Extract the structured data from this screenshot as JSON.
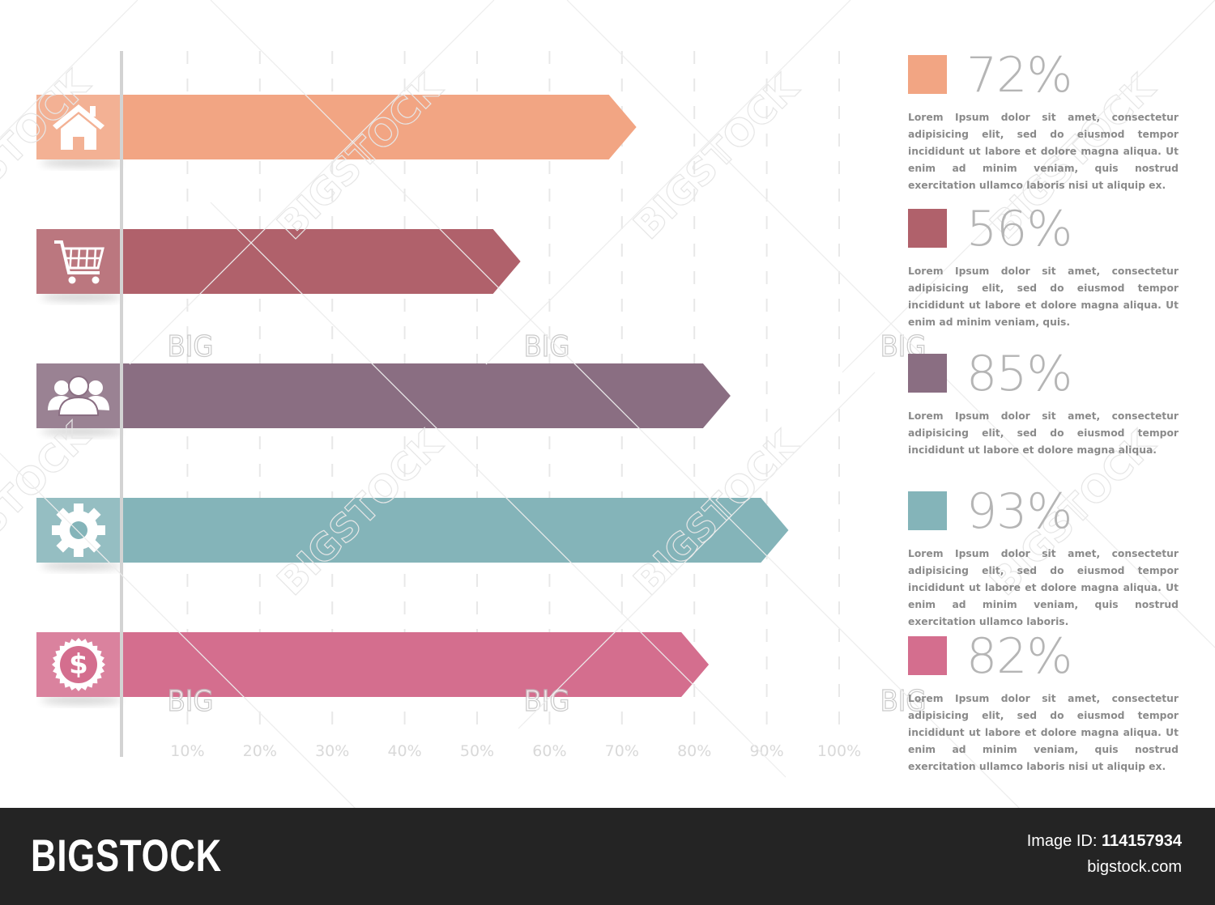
{
  "chart_data": {
    "type": "bar",
    "orientation": "horizontal",
    "title": "",
    "xlabel": "",
    "ylabel": "",
    "xlim": [
      0,
      100
    ],
    "x_ticks": [
      "10%",
      "20%",
      "30%",
      "40%",
      "50%",
      "60%",
      "70%",
      "80%",
      "90%",
      "100%"
    ],
    "grid": true,
    "legend_position": "right",
    "categories": [
      "home-icon",
      "cart-icon",
      "people-icon",
      "gear-icon",
      "dollar-icon"
    ],
    "values": [
      72,
      56,
      85,
      93,
      82
    ],
    "colors": [
      "#f2a583",
      "#b0616b",
      "#8a6e82",
      "#84b4b9",
      "#d46e8e"
    ],
    "legend": [
      {
        "label": "72%",
        "color": "#f2a583",
        "text": "Lorem Ipsum dolor sit amet, consectetur adipisicing elit, sed do eiusmod tempor incididunt ut labore et dolore magna aliqua. Ut enim ad minim veniam, quis nostrud exercitation ullamco laboris nisi ut aliquip ex."
      },
      {
        "label": "56%",
        "color": "#b0616b",
        "text": "Lorem Ipsum dolor sit amet, consectetur adipisicing elit, sed do eiusmod tempor incididunt ut labore et dolore magna aliqua. Ut enim ad minim veniam, quis."
      },
      {
        "label": "85%",
        "color": "#8a6e82",
        "text": "Lorem Ipsum dolor sit amet, consectetur adipisicing elit, sed do eiusmod tempor incididunt ut labore et dolore magna aliqua."
      },
      {
        "label": "93%",
        "color": "#84b4b9",
        "text": "Lorem Ipsum dolor sit amet, consectetur adipisicing elit, sed do eiusmod tempor incididunt ut labore et dolore magna aliqua. Ut enim ad minim veniam, quis nostrud exercitation ullamco laboris."
      },
      {
        "label": "82%",
        "color": "#d46e8e",
        "text": "Lorem Ipsum dolor sit amet, consectetur adipisicing elit, sed do eiusmod tempor incididunt ut labore et dolore magna aliqua. Ut enim ad minim veniam, quis nostrud exercitation ullamco laboris nisi ut aliquip ex."
      }
    ]
  },
  "watermark": {
    "main": "BIGSTOCK",
    "small": "BIG"
  },
  "footer": {
    "brand": "BIGSTOCK",
    "image_id_label": "Image ID:",
    "image_id": "114157934",
    "site": "bigstock.com"
  }
}
